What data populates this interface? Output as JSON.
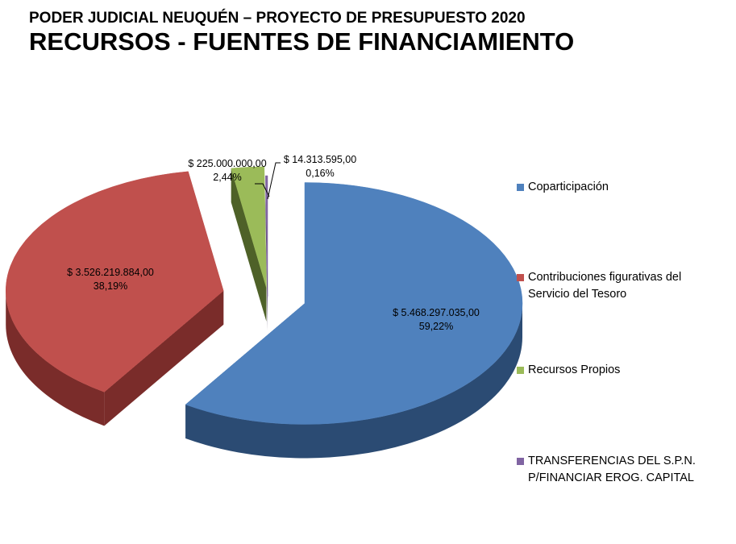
{
  "header": {
    "subtitle": "PODER JUDICIAL NEUQUÉN – PROYECTO DE PRESUPUESTO 2020",
    "title": "RECURSOS - FUENTES DE FINANCIAMIENTO"
  },
  "chart_data": {
    "type": "pie",
    "style": "3d-exploded",
    "legend_position": "right",
    "slices": [
      {
        "name": "Coparticipación",
        "value": 5468297035.0,
        "value_label": "$ 5.468.297.035,00",
        "percent": 59.22,
        "percent_label": "59,22%",
        "color": "#4F81BD",
        "side_color": "#2B4B73"
      },
      {
        "name": "Contribuciones figurativas del Servicio del Tesoro",
        "name_lines": [
          "Contribuciones figurativas del",
          "Servicio del Tesoro"
        ],
        "value": 3526219884.0,
        "value_label": "$ 3.526.219.884,00",
        "percent": 38.19,
        "percent_label": "38,19%",
        "color": "#C0504D",
        "side_color": "#7A2C2A"
      },
      {
        "name": "Recursos Propios",
        "value": 225000000.0,
        "value_label": "$ 225.000.000,00",
        "percent": 2.44,
        "percent_label": "2,44%",
        "color": "#9BBB59",
        "side_color": "#4E6128"
      },
      {
        "name": "TRANSFERENCIAS DEL S.P.N. P/FINANCIAR EROG. CAPITAL",
        "name_lines": [
          "TRANSFERENCIAS DEL S.P.N.",
          "P/FINANCIAR EROG. CAPITAL"
        ],
        "value": 14313595.0,
        "value_label": "$ 14.313.595,00",
        "percent": 0.16,
        "percent_label": "0,16%",
        "color": "#8064A2",
        "side_color": "#4A3A5E"
      }
    ]
  }
}
